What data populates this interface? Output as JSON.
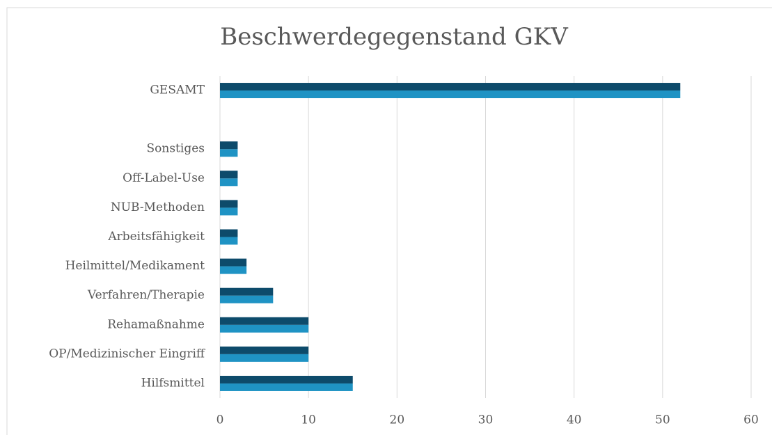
{
  "chart_data": {
    "type": "hbar",
    "title": "Beschwerdegegenstand GKV",
    "categories": [
      "Hilfsmittel",
      "OP/Medizinischer Eingriff",
      "Rehamaßnahme",
      "Verfahren/Therapie",
      "Heilmittel/Medikament",
      "Arbeitsfähigkeit",
      "NUB-Methoden",
      "Off-Label-Use",
      "Sonstiges",
      null,
      "GESAMT"
    ],
    "series": [
      {
        "color": "#1f93c4",
        "values": [
          15,
          10,
          10,
          6,
          3,
          2,
          2,
          2,
          2,
          null,
          52
        ]
      },
      {
        "color": "#0d4b6b",
        "values": [
          15,
          10,
          10,
          6,
          3,
          2,
          2,
          2,
          2,
          null,
          52
        ]
      }
    ],
    "xlim": [
      0,
      60
    ],
    "xticks": [
      0,
      10,
      20,
      30,
      40,
      50,
      60
    ],
    "grid": true
  }
}
